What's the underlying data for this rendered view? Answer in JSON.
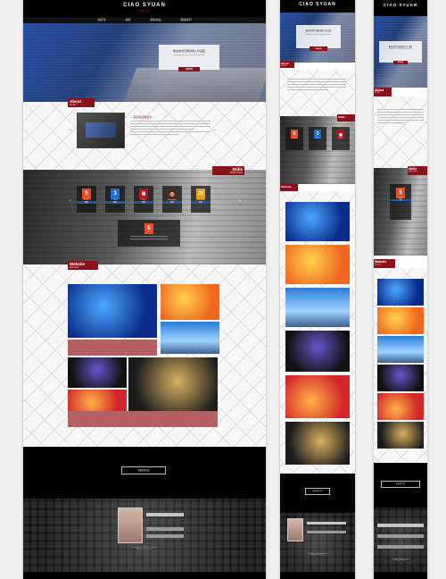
{
  "brand": {
    "logo_text": "CIAO SYUAN",
    "logo_sub": "2018"
  },
  "nav": {
    "items": [
      "關於我",
      "技能",
      "網站作品",
      "聯絡我們"
    ]
  },
  "hero": {
    "title": "歡迎來到巧璇的個人作品集",
    "subtitle": "Welcome to Chiao-Hsuan's portfolio",
    "button": "繼續閱讀"
  },
  "about": {
    "tag": "About",
    "tag_sub": "個人簡介",
    "heading": "— 資訊科技的探索者 —"
  },
  "skills": {
    "tag": "Skills",
    "tag_sub": "專業能力與技術",
    "items": [
      {
        "icon": "5",
        "label": "HTML5",
        "btn": "查看",
        "color": "#e44d26"
      },
      {
        "icon": "3",
        "label": "CSS3",
        "btn": "查看",
        "color": "#1f6fd1"
      },
      {
        "icon": "▣",
        "label": "RWD",
        "btn": "查看",
        "color": "#b3161e"
      },
      {
        "icon": "◎",
        "label": "Photoshop",
        "btn": "查看",
        "color": "#5a2a0e"
      },
      {
        "icon": "JS",
        "label": "JavaScript",
        "btn": "查看",
        "color": "#e8a21a"
      },
      {
        "icon": "5",
        "label": "HTML5",
        "btn": "查看",
        "color": "#e44d26"
      }
    ]
  },
  "website": {
    "tag": "Website",
    "tag_sub": "網站作品集"
  },
  "footer": {
    "more_button": "查看更多作品",
    "copyright_1": "Copyright © 2018 Chiao-Syuan",
    "copyright_2": "All Rights Reserved."
  },
  "colors": {
    "accent": "#8c121a",
    "footer": "#000000"
  }
}
